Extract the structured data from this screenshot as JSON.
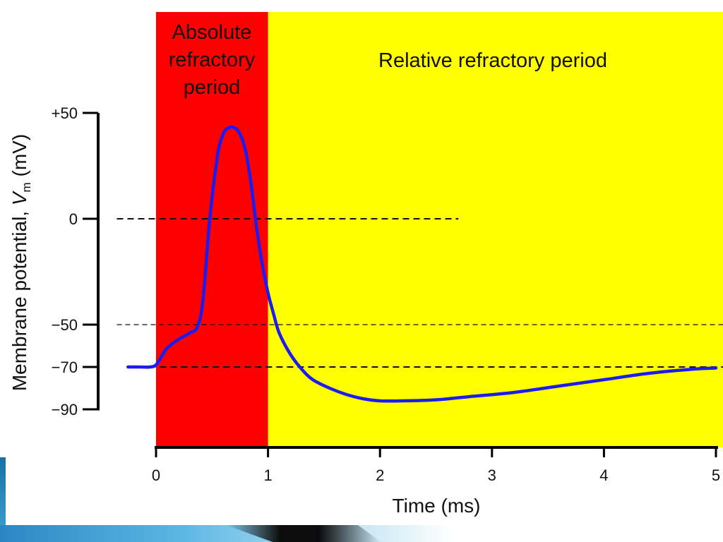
{
  "chart_data": {
    "type": "line",
    "regions": [
      {
        "label_lines": [
          "Absolute",
          "refractory",
          "period"
        ],
        "x_start": 0,
        "x_end": 1,
        "color": "#ff0000"
      },
      {
        "label_lines": [
          "Relative refractory period"
        ],
        "x_start": 1,
        "x_end": 5,
        "color": "#ffff00"
      }
    ],
    "series": [
      {
        "color": "#1c1cf0",
        "x": [
          -0.25,
          -0.15,
          -0.05,
          0.0,
          0.05,
          0.1,
          0.2,
          0.3,
          0.37,
          0.42,
          0.48,
          0.55,
          0.6,
          0.65,
          0.7,
          0.75,
          0.8,
          0.85,
          0.9,
          0.95,
          1.0,
          1.05,
          1.1,
          1.2,
          1.3,
          1.4,
          1.55,
          1.7,
          1.85,
          2.0,
          2.2,
          2.5,
          2.8,
          3.2,
          3.6,
          4.0,
          4.4,
          4.8,
          5.0
        ],
        "y": [
          -70,
          -70,
          -70,
          -69,
          -65,
          -61,
          -57,
          -54,
          -51,
          -38,
          0,
          30,
          40,
          43,
          43,
          40,
          32,
          16,
          -5,
          -22,
          -35,
          -45,
          -54,
          -64,
          -71,
          -76,
          -80,
          -83,
          -85,
          -86,
          -86,
          -85.5,
          -84,
          -82,
          -79,
          -76,
          -73,
          -71,
          -70.5
        ]
      }
    ],
    "reference_lines": [
      {
        "y": 0,
        "x_start": -0.35,
        "x_end": 2.7,
        "style": "dashed"
      },
      {
        "y": -50,
        "x_start": -0.35,
        "x_end": 5.1,
        "style": "dashed-thin"
      },
      {
        "y": -70,
        "x_start": -0.25,
        "x_end": 5.1,
        "style": "dashed"
      }
    ],
    "x_ticks": [
      "0",
      "1",
      "2",
      "3",
      "4",
      "5"
    ],
    "x_tick_values": [
      0,
      1,
      2,
      3,
      4,
      5
    ],
    "y_ticks": [
      "+50",
      "0",
      "−50",
      "−70",
      "−90"
    ],
    "y_tick_values": [
      50,
      0,
      -50,
      -70,
      -90
    ],
    "xlabel": "Time (ms)",
    "ylabel_parts": [
      "Membrane potential, ",
      "V",
      "m",
      " (mV)"
    ],
    "xlim": [
      0,
      5
    ],
    "ylim": [
      -90,
      50
    ]
  }
}
